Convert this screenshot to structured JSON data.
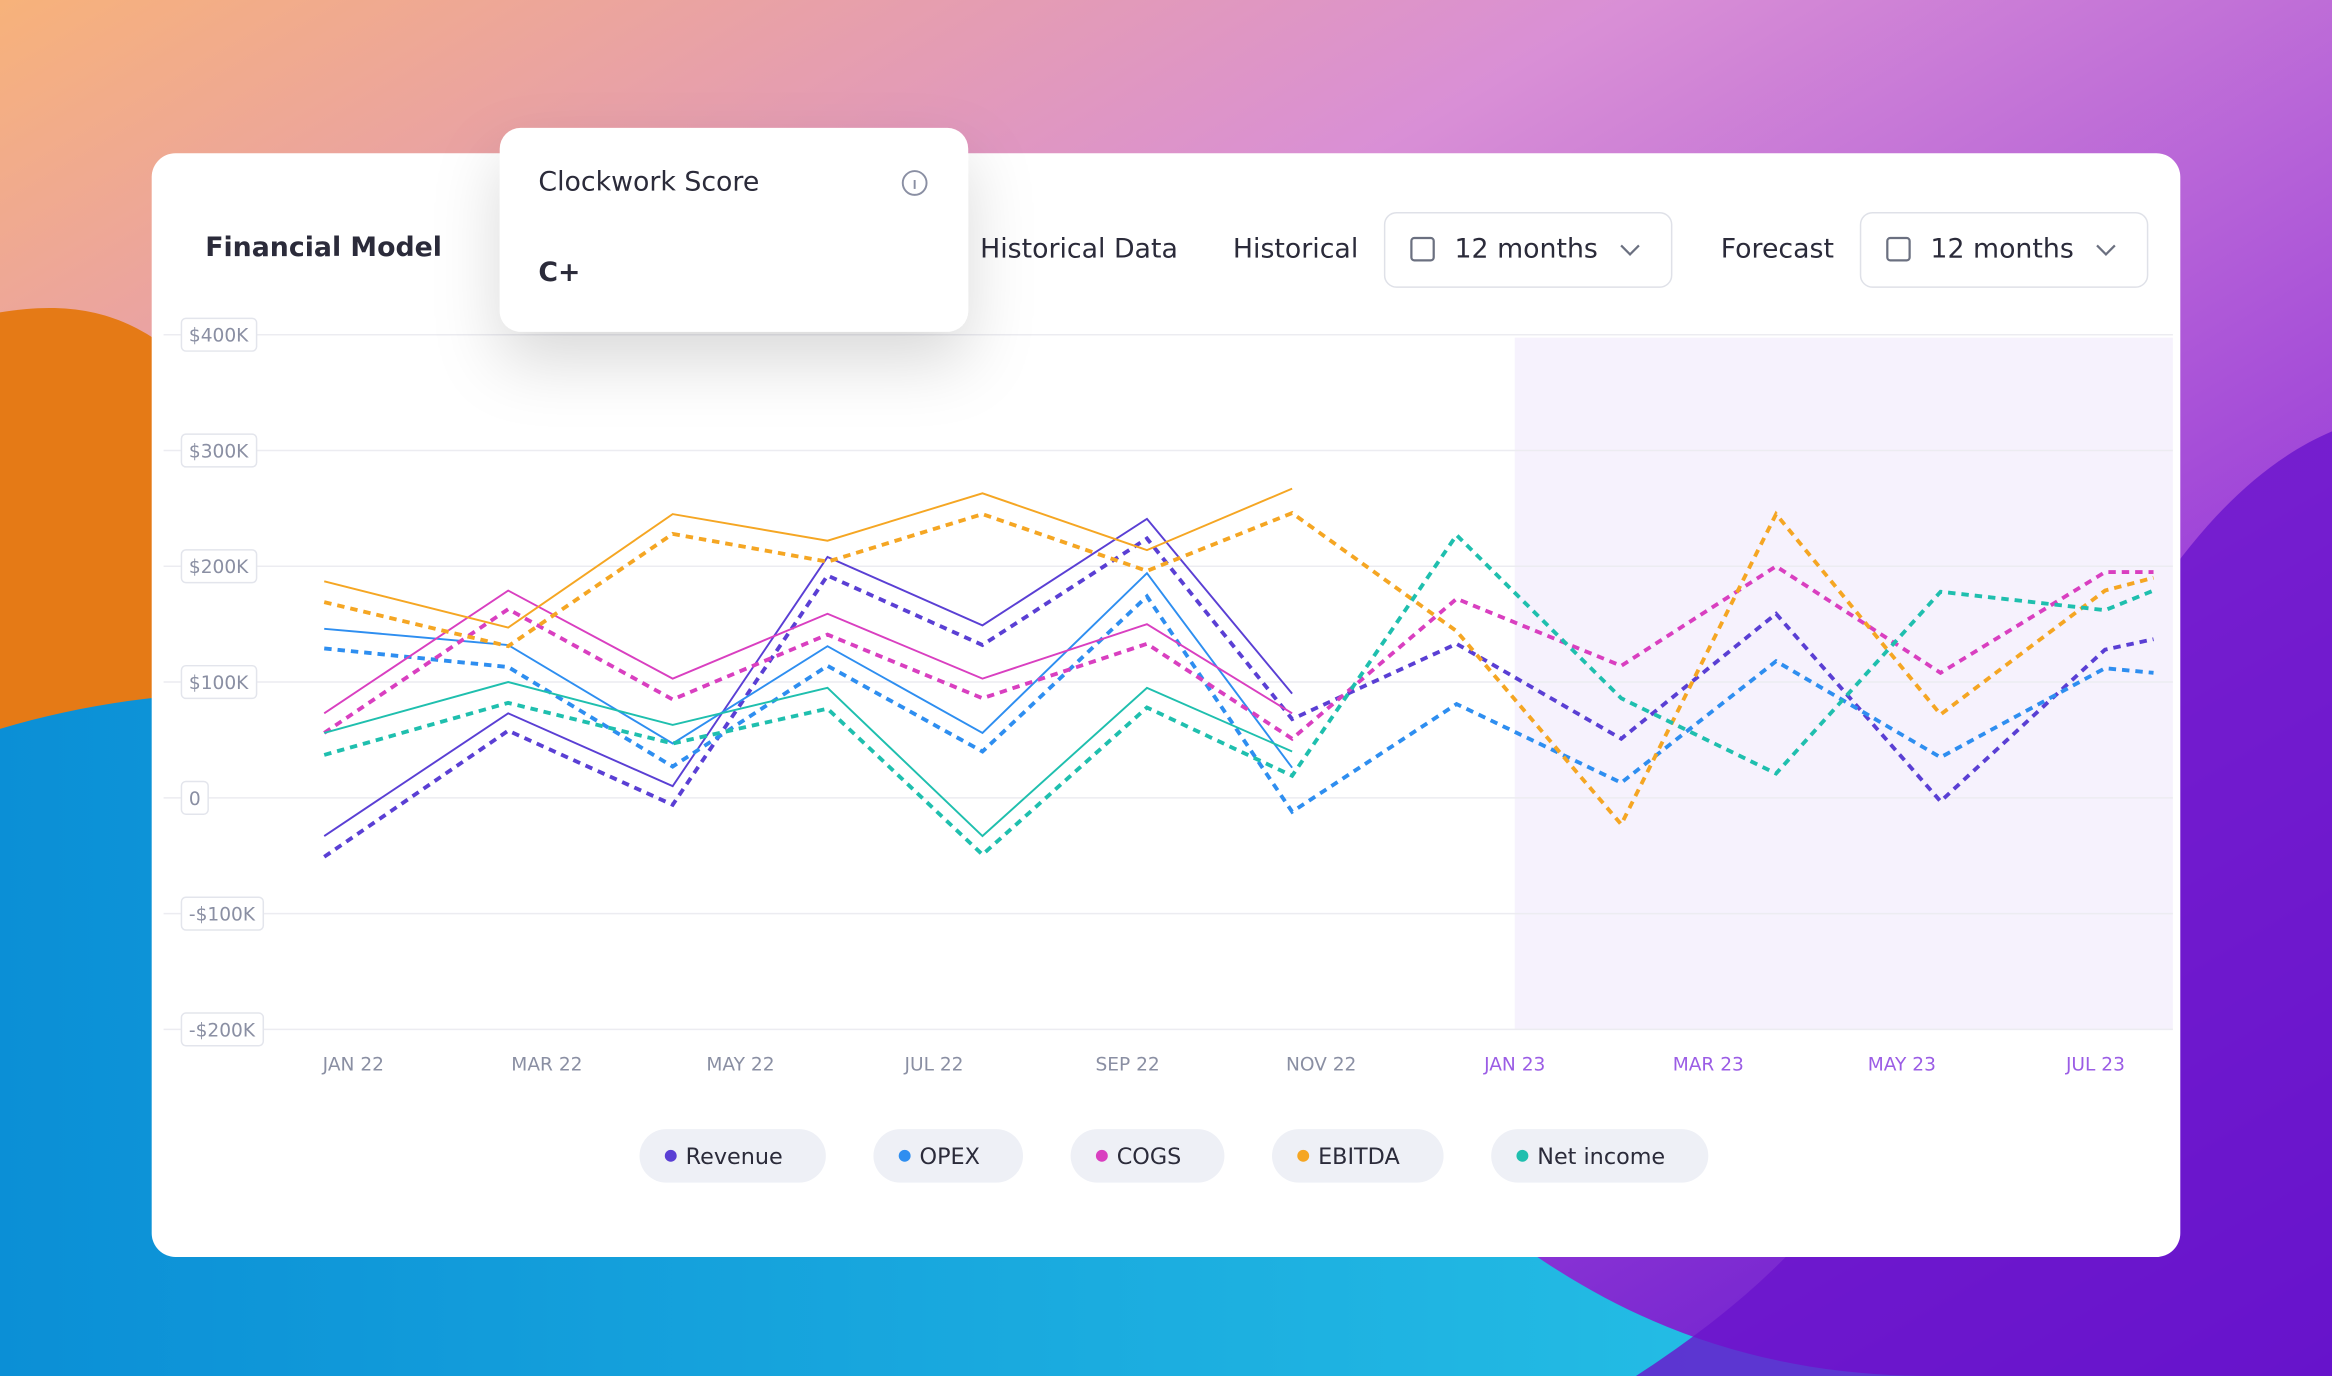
{
  "header": {
    "title": "Financial Model",
    "historical_data": "Historical Data",
    "historical_label": "Historical",
    "historical_range": "12 months",
    "forecast_label": "Forecast",
    "forecast_range": "12 months"
  },
  "score_popup": {
    "title": "Clockwork Score",
    "score": "C+"
  },
  "chart_data": {
    "type": "line",
    "x": [
      -0.3,
      1.6,
      3.3,
      4.9,
      6.5,
      8.2,
      9.7,
      11.4,
      13.1,
      14.7,
      16.4,
      18.1,
      18.6
    ],
    "xlim": [
      -0.9,
      18.8
    ],
    "xticks": [
      {
        "value": 0,
        "label": "JAN 22"
      },
      {
        "value": 2,
        "label": "MAR 22"
      },
      {
        "value": 4,
        "label": "MAY 22"
      },
      {
        "value": 6,
        "label": "JUL 22"
      },
      {
        "value": 8,
        "label": "SEP 22"
      },
      {
        "value": 10,
        "label": "NOV 22"
      },
      {
        "value": 12,
        "label": "JAN 23"
      },
      {
        "value": 14,
        "label": "MAR 23"
      },
      {
        "value": 16,
        "label": "MAY 23"
      },
      {
        "value": 18,
        "label": "JUL 23"
      }
    ],
    "shaded_from": 12,
    "ylim": [
      -200000,
      400000
    ],
    "yticks": [
      {
        "value": 400000,
        "label": "$400K"
      },
      {
        "value": 300000,
        "label": "$300K"
      },
      {
        "value": 200000,
        "label": "$200K"
      },
      {
        "value": 100000,
        "label": "$100K"
      },
      0,
      {
        "value": -100000,
        "label": "-$100K"
      },
      {
        "value": -200000,
        "label": "-$200K"
      }
    ],
    "grid": true,
    "series": [
      {
        "name": "Revenue",
        "color": "#5a3fd4",
        "values": [
          -33000,
          73000,
          10000,
          208000,
          149000,
          241000,
          90000,
          null,
          null,
          null,
          null,
          null,
          null
        ],
        "dashed_values": [
          -51000,
          58000,
          -6000,
          192000,
          132000,
          224000,
          68000,
          133000,
          51000,
          159000,
          -3000,
          128000,
          137000
        ]
      },
      {
        "name": "OPEX",
        "color": "#2e8ef0",
        "values": [
          146000,
          132000,
          47000,
          131000,
          56000,
          194000,
          26000,
          null,
          null,
          null,
          null,
          null,
          null
        ],
        "dashed_values": [
          129000,
          113000,
          27000,
          114000,
          40000,
          174000,
          -12000,
          81000,
          13000,
          118000,
          35000,
          112000,
          108000
        ]
      },
      {
        "name": "COGS",
        "color": "#d93fc0",
        "values": [
          73000,
          179000,
          103000,
          159000,
          103000,
          150000,
          73000,
          null,
          null,
          null,
          null,
          null,
          null
        ],
        "dashed_values": [
          56000,
          163000,
          85000,
          141000,
          86000,
          133000,
          51000,
          172000,
          114000,
          200000,
          108000,
          195000,
          195000
        ]
      },
      {
        "name": "EBITDA",
        "color": "#f5a623",
        "values": [
          187000,
          147000,
          245000,
          222000,
          263000,
          214000,
          267000,
          null,
          null,
          null,
          null,
          null,
          null
        ],
        "dashed_values": [
          169000,
          131000,
          228000,
          204000,
          245000,
          196000,
          246000,
          144000,
          -23000,
          245000,
          72000,
          179000,
          190000
        ]
      },
      {
        "name": "Net income",
        "color": "#1fbfae",
        "values": [
          56000,
          100000,
          63000,
          95000,
          -33000,
          95000,
          40000,
          null,
          null,
          null,
          null,
          null,
          null
        ],
        "dashed_values": [
          37000,
          82000,
          47000,
          77000,
          -49000,
          78000,
          19000,
          227000,
          86000,
          21000,
          178000,
          162000,
          179000
        ]
      }
    ]
  }
}
